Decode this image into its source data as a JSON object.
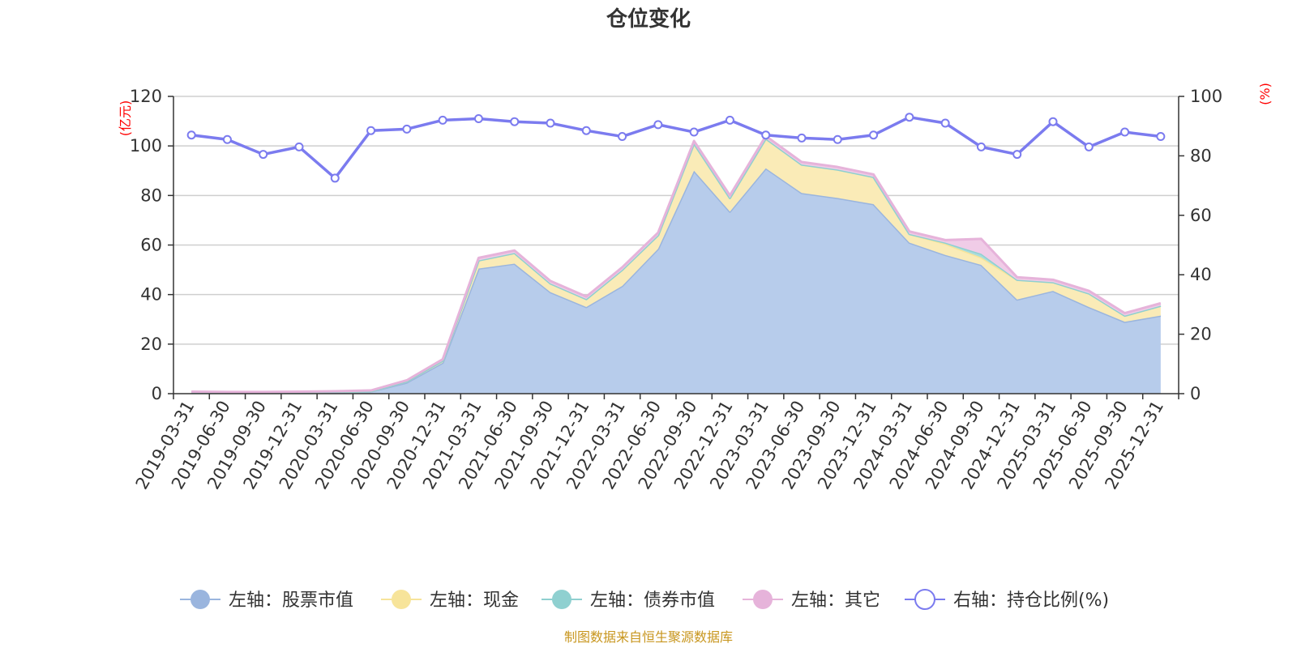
{
  "chart_data": {
    "type": "area",
    "title": "仓位变化",
    "source": "制图数据来自恒生聚源数据库",
    "left_axis": {
      "unit": "(亿元)",
      "ylim": [
        0,
        120
      ],
      "ticks": [
        0,
        20,
        40,
        60,
        80,
        100,
        120
      ]
    },
    "right_axis": {
      "unit": "(%)",
      "ylim": [
        0,
        100
      ],
      "ticks": [
        0,
        20,
        40,
        60,
        80,
        100
      ]
    },
    "categories": [
      "2019-03-31",
      "2019-06-30",
      "2019-09-30",
      "2019-12-31",
      "2020-03-31",
      "2020-06-30",
      "2020-09-30",
      "2020-12-31",
      "2021-03-31",
      "2021-06-30",
      "2021-09-30",
      "2021-12-31",
      "2022-03-31",
      "2022-06-30",
      "2022-09-30",
      "2022-12-31",
      "2023-03-31",
      "2023-06-30",
      "2023-09-30",
      "2023-12-31",
      "2024-03-31",
      "2024-06-30",
      "2024-09-30",
      "2024-12-31",
      "2025-03-31",
      "2025-06-30",
      "2025-09-30",
      "2025-12-31"
    ],
    "series": [
      {
        "name": "左轴：股票市值",
        "axis": "left",
        "color": "#9ab5de",
        "fill": "#b7cceb",
        "values": [
          0.5,
          0.4,
          0.4,
          0.5,
          0.7,
          0.9,
          4.5,
          12.5,
          50.5,
          52.5,
          41,
          35,
          43.5,
          58.5,
          90,
          73.5,
          91,
          81,
          79,
          76.5,
          61,
          56,
          52,
          38,
          41.5,
          35,
          29,
          31.5
        ]
      },
      {
        "name": "左轴：现金",
        "axis": "left",
        "color": "#f7e49a",
        "fill": "#faebb7",
        "values": [
          0.1,
          0.1,
          0.1,
          0.1,
          0.1,
          0.1,
          0.5,
          0.8,
          3.3,
          4.3,
          3.5,
          3.2,
          6.5,
          5.5,
          11,
          5.5,
          12,
          11.5,
          11.5,
          11,
          3.5,
          4.5,
          3,
          8,
          3.5,
          5.5,
          2.5,
          4
        ]
      },
      {
        "name": "左轴：债券市值",
        "axis": "left",
        "color": "#8fd0d0",
        "fill": "#a9dcdc",
        "values": [
          0,
          0,
          0,
          0,
          0,
          0,
          0,
          0,
          0,
          0,
          0,
          0,
          0,
          0,
          0,
          0,
          0,
          0,
          0,
          0,
          0,
          0.5,
          1.5,
          0,
          0,
          0,
          0,
          0
        ]
      },
      {
        "name": "左轴：其它",
        "axis": "left",
        "color": "#e6b3da",
        "fill": "#f0cce7",
        "values": [
          0.2,
          0.2,
          0.2,
          0.2,
          0.2,
          0.3,
          0.4,
          0.6,
          1,
          1,
          1,
          1,
          1,
          1,
          1,
          1,
          1,
          1,
          1,
          1,
          1,
          1,
          6,
          1,
          1,
          1,
          1,
          1
        ]
      },
      {
        "name": "右轴：持仓比例(%)",
        "axis": "right",
        "color": "#7b7bef",
        "values": [
          87,
          85.5,
          80.5,
          83,
          72.5,
          88.5,
          89,
          92,
          92.5,
          91.5,
          91,
          88.5,
          86.5,
          90.5,
          88,
          92,
          87,
          86,
          85.5,
          87,
          93,
          91,
          83,
          80.5,
          91.5,
          83,
          88,
          86.5
        ]
      }
    ],
    "legend": {
      "position": "bottom"
    }
  }
}
